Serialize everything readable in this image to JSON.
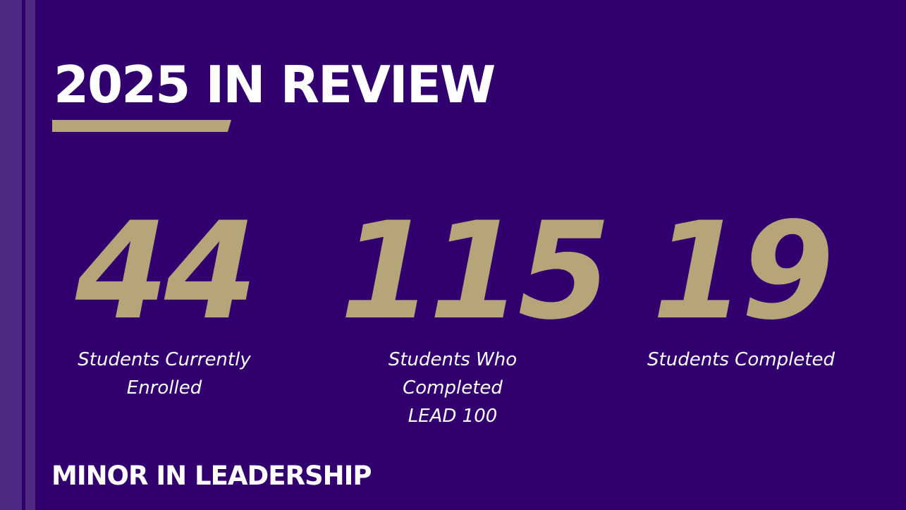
{
  "slide": {
    "title": "2025 IN REVIEW",
    "footer": "MINOR IN LEADERSHIP",
    "stats": [
      {
        "value": "44",
        "label_lines": [
          "Students Currently",
          "Enrolled"
        ]
      },
      {
        "value": "115",
        "label_lines": [
          "Students Who Completed",
          "LEAD 100"
        ]
      },
      {
        "value": "19",
        "label_lines": [
          "Students Completed"
        ]
      }
    ]
  },
  "colors": {
    "background": "#32006e",
    "stripe": "#4e2a85",
    "accent_gold": "#b7a57a",
    "text": "#ffffff"
  }
}
